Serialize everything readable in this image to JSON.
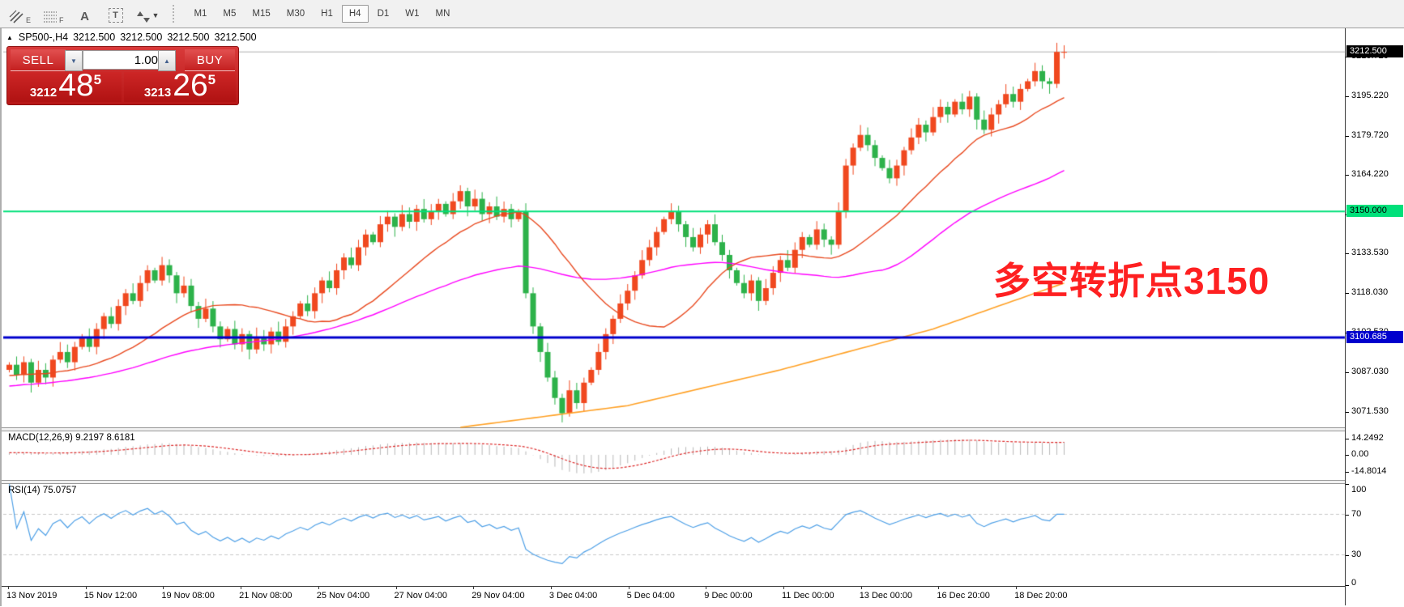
{
  "toolbar": {
    "drawing_tools": [
      {
        "name": "equidistant-channel",
        "sub": "E"
      },
      {
        "name": "fibonacci-retracement",
        "sub": "F"
      },
      {
        "name": "text-label",
        "glyph": "A"
      },
      {
        "name": "text-box",
        "glyph": "T"
      },
      {
        "name": "arrow-objects",
        "glyph": "⬘⬙"
      }
    ],
    "dropdown_caret": "▼",
    "timeframes": [
      "M1",
      "M5",
      "M15",
      "M30",
      "H1",
      "H4",
      "D1",
      "W1",
      "MN"
    ],
    "active_timeframe": "H4"
  },
  "chart_header": {
    "collapse_icon": "▲",
    "symbol_period": "SP500-,H4",
    "open": "3212.500",
    "high": "3212.500",
    "low": "3212.500",
    "close": "3212.500"
  },
  "trade_panel": {
    "sell_label": "SELL",
    "buy_label": "BUY",
    "volume": "1.00",
    "decrease_icon": "▼",
    "increase_icon": "▲",
    "sell_price": {
      "prefix": "3212",
      "big": "48",
      "sup": "5"
    },
    "buy_price": {
      "prefix": "3213",
      "big": "26",
      "sup": "5"
    }
  },
  "price_axis": {
    "current_price_label": "3212.500",
    "ticks": [
      {
        "label": "3210.720",
        "value": 3210.72
      },
      {
        "label": "3195.220",
        "value": 3195.22
      },
      {
        "label": "3179.720",
        "value": 3179.72
      },
      {
        "label": "3164.220",
        "value": 3164.22
      },
      {
        "label": "3148.720",
        "value": 3148.72
      },
      {
        "label": "3133.530",
        "value": 3133.53
      },
      {
        "label": "3118.030",
        "value": 3118.03
      },
      {
        "label": "3102.530",
        "value": 3102.53
      },
      {
        "label": "3087.030",
        "value": 3087.03
      },
      {
        "label": "3071.530",
        "value": 3071.53
      }
    ],
    "levels": [
      {
        "label": "3150.000",
        "value": 3150.0,
        "color": "#00e07a",
        "text": "#000000"
      },
      {
        "label": "3100.685",
        "value": 3100.685,
        "color": "#0000cd",
        "text": "#ffffff"
      }
    ]
  },
  "annotation": {
    "text": "多空转折点3150",
    "color": "#fe2021"
  },
  "indicators": {
    "macd": {
      "label": "MACD(12,26,9) 9.2197 8.6181",
      "fast": 12,
      "slow": 26,
      "signal": 9,
      "axis": [
        {
          "label": "14.2492",
          "value": 14.2492
        },
        {
          "label": "0.00",
          "value": 0
        },
        {
          "label": "-14.8014",
          "value": -14.8014
        }
      ]
    },
    "rsi": {
      "label": "RSI(14) 75.0757",
      "period": 14,
      "axis": [
        {
          "label": "100",
          "value": 100
        },
        {
          "label": "70",
          "value": 70
        },
        {
          "label": "30",
          "value": 30
        },
        {
          "label": "0",
          "value": 0
        }
      ],
      "levels": [
        70,
        30
      ]
    }
  },
  "time_axis": {
    "labels": [
      "13 Nov 2019",
      "15 Nov 12:00",
      "19 Nov 08:00",
      "21 Nov 08:00",
      "25 Nov 04:00",
      "27 Nov 04:00",
      "29 Nov 04:00",
      "3 Dec 04:00",
      "5 Dec 04:00",
      "9 Dec 00:00",
      "11 Dec 00:00",
      "13 Dec 00:00",
      "16 Dec 20:00",
      "18 Dec 20:00"
    ]
  },
  "chart_data": {
    "type": "candlestick",
    "symbol": "SP500-",
    "timeframe": "H4",
    "price_range": {
      "top": 3215.4,
      "bottom": 3065.5
    },
    "current_price": 3212.5,
    "horizontal_lines": [
      3150.0,
      3100.685
    ],
    "closes": [
      3090,
      3086,
      3091,
      3083,
      3088,
      3085,
      3092,
      3095,
      3091,
      3097,
      3101,
      3097,
      3104,
      3109,
      3106,
      3113,
      3118,
      3115,
      3122,
      3127,
      3123,
      3129,
      3125,
      3118,
      3121,
      3113,
      3108,
      3112,
      3105,
      3100,
      3104,
      3098,
      3102,
      3096,
      3101,
      3098,
      3103,
      3099,
      3105,
      3109,
      3114,
      3111,
      3118,
      3123,
      3120,
      3127,
      3132,
      3129,
      3136,
      3141,
      3138,
      3145,
      3148,
      3144,
      3149,
      3146,
      3151,
      3147,
      3150,
      3153,
      3149,
      3154,
      3158,
      3152,
      3155,
      3149,
      3152,
      3148,
      3151,
      3147,
      3150,
      3118,
      3105,
      3095,
      3085,
      3077,
      3071,
      3080,
      3075,
      3083,
      3088,
      3095,
      3102,
      3108,
      3114,
      3119,
      3125,
      3131,
      3136,
      3142,
      3147,
      3150,
      3145,
      3140,
      3136,
      3141,
      3145,
      3138,
      3133,
      3127,
      3122,
      3118,
      3123,
      3115,
      3120,
      3126,
      3131,
      3128,
      3135,
      3140,
      3137,
      3143,
      3139,
      3137,
      3150,
      3168,
      3175,
      3180,
      3176,
      3171,
      3167,
      3163,
      3168,
      3174,
      3179,
      3184,
      3181,
      3187,
      3191,
      3188,
      3193,
      3190,
      3195,
      3186,
      3182,
      3188,
      3192,
      3196,
      3193,
      3198,
      3201,
      3205,
      3201,
      3200,
      3212.5,
      3212.5
    ],
    "ma_fast_period": 20,
    "ma_mid_period": 50,
    "history_seed": {
      "from": 3072,
      "to": 3088,
      "bars": 60
    },
    "ma_slow_anchors": [
      [
        62,
        3065.5
      ],
      [
        85,
        3074
      ],
      [
        106,
        3088
      ],
      [
        127,
        3104
      ],
      [
        145,
        3122
      ]
    ],
    "macd_range": {
      "max": 21.4,
      "min": -22.1
    },
    "colors": {
      "bull": "#f0481f",
      "bear": "#2db24a",
      "ma_fast": "#e8491f",
      "ma_mid": "#ff00ff",
      "ma_slow": "#ffa024",
      "macd_hist": "#b8b8b8",
      "macd_signal": "#dd2b2b",
      "rsi": "#4d9fe6",
      "rsi_grid": "#c8c8c8",
      "current_line": "#b0b0b0"
    }
  }
}
